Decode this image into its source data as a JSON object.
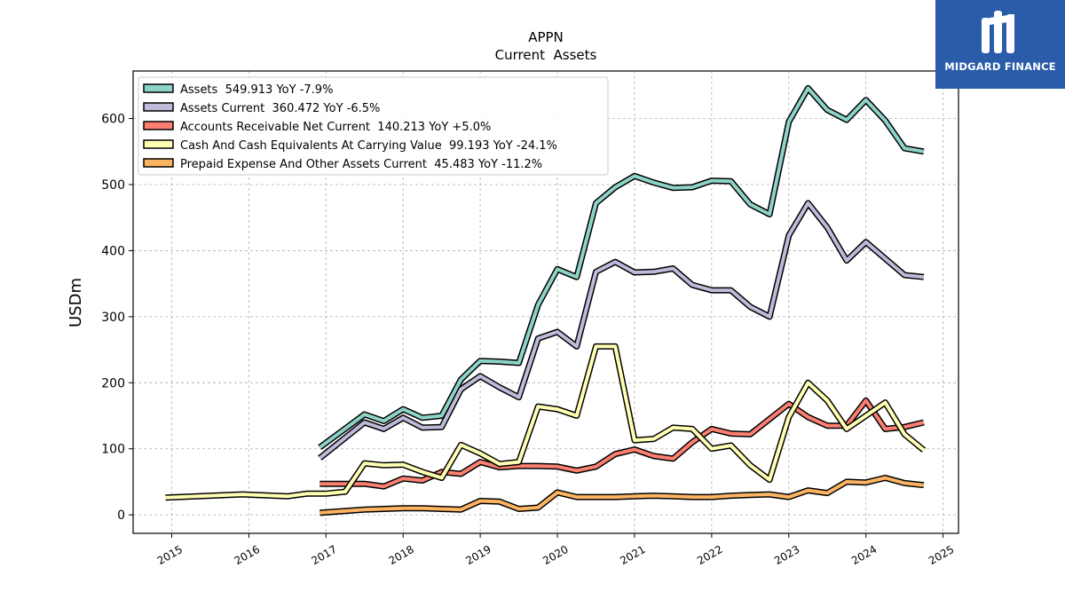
{
  "brand": {
    "name": "MIDGARD FINANCE",
    "bg_color": "#2a5caa"
  },
  "chart_data": {
    "type": "line",
    "title": "APPN",
    "subtitle": "Current  Assets",
    "ylabel": "USDm",
    "xlabel": "",
    "xlim": [
      2014.5,
      2025.2
    ],
    "ylim": [
      -28,
      672
    ],
    "yticks": [
      0,
      100,
      200,
      300,
      400,
      500,
      600
    ],
    "xticks": [
      2015,
      2016,
      2017,
      2018,
      2019,
      2020,
      2021,
      2022,
      2023,
      2024,
      2025
    ],
    "grid": true,
    "legend_position": "top-left",
    "series": [
      {
        "name": "Assets  549.913 YoY -7.9%",
        "color": "#8dd3c7",
        "x": [
          2016.92,
          2017.5,
          2017.75,
          2018.0,
          2018.25,
          2018.5,
          2018.75,
          2019.0,
          2019.25,
          2019.5,
          2019.75,
          2020.0,
          2020.25,
          2020.5,
          2020.75,
          2021.0,
          2021.25,
          2021.5,
          2021.75,
          2022.0,
          2022.25,
          2022.5,
          2022.75,
          2023.0,
          2023.25,
          2023.5,
          2023.75,
          2024.0,
          2024.25,
          2024.5,
          2024.75
        ],
        "values": [
          102,
          152,
          142,
          160,
          147,
          150,
          205,
          233,
          232,
          230,
          318,
          372,
          360,
          472,
          496,
          513,
          503,
          495,
          496,
          506,
          505,
          470,
          455,
          595,
          646,
          613,
          598,
          628,
          597,
          555,
          550
        ]
      },
      {
        "name": "Assets Current  360.472 YoY -6.5%",
        "color": "#bebada",
        "x": [
          2016.92,
          2017.5,
          2017.75,
          2018.0,
          2018.25,
          2018.5,
          2018.75,
          2019.0,
          2019.25,
          2019.5,
          2019.75,
          2020.0,
          2020.25,
          2020.5,
          2020.75,
          2021.0,
          2021.25,
          2021.5,
          2021.75,
          2022.0,
          2022.25,
          2022.5,
          2022.75,
          2023.0,
          2023.25,
          2023.5,
          2023.75,
          2024.0,
          2024.25,
          2024.5,
          2024.75
        ],
        "values": [
          86,
          140,
          130,
          147,
          132,
          133,
          190,
          210,
          193,
          178,
          267,
          277,
          255,
          368,
          383,
          367,
          368,
          373,
          348,
          340,
          340,
          315,
          300,
          423,
          472,
          435,
          385,
          413,
          388,
          363,
          360
        ]
      },
      {
        "name": "Accounts Receivable Net Current  140.213 YoY +5.0%",
        "color": "#fb8072",
        "x": [
          2016.92,
          2017.5,
          2017.75,
          2018.0,
          2018.25,
          2018.5,
          2018.75,
          2019.0,
          2019.25,
          2019.5,
          2019.75,
          2020.0,
          2020.25,
          2020.5,
          2020.75,
          2021.0,
          2021.25,
          2021.5,
          2021.75,
          2022.0,
          2022.25,
          2022.5,
          2022.75,
          2023.0,
          2023.25,
          2023.5,
          2023.75,
          2024.0,
          2024.25,
          2024.5,
          2024.75
        ],
        "values": [
          47,
          47,
          43,
          55,
          52,
          65,
          62,
          80,
          72,
          74,
          74,
          73,
          67,
          73,
          92,
          99,
          89,
          85,
          110,
          130,
          123,
          122,
          145,
          168,
          148,
          135,
          135,
          173,
          130,
          133,
          140
        ]
      },
      {
        "name": "Cash And Cash Equivalents At Carrying Value  99.193 YoY -24.1%",
        "color": "#ffffb3",
        "x": [
          2014.92,
          2015.92,
          2016.5,
          2016.75,
          2017.0,
          2017.25,
          2017.5,
          2017.75,
          2018.0,
          2018.25,
          2018.5,
          2018.75,
          2019.0,
          2019.25,
          2019.5,
          2019.75,
          2020.0,
          2020.25,
          2020.5,
          2020.75,
          2021.0,
          2021.25,
          2021.5,
          2021.75,
          2022.0,
          2022.25,
          2022.5,
          2022.75,
          2023.0,
          2023.25,
          2023.5,
          2023.75,
          2024.0,
          2024.25,
          2024.5,
          2024.75
        ],
        "values": [
          26,
          31,
          28,
          32,
          32,
          35,
          78,
          75,
          76,
          65,
          56,
          106,
          93,
          77,
          80,
          164,
          160,
          150,
          255,
          255,
          113,
          115,
          132,
          130,
          100,
          105,
          75,
          53,
          148,
          200,
          173,
          130,
          150,
          170,
          122,
          98
        ]
      },
      {
        "name": "Prepaid Expense And Other Assets Current  45.483 YoY -11.2%",
        "color": "#fdb462",
        "x": [
          2016.92,
          2017.5,
          2017.75,
          2018.0,
          2018.25,
          2018.5,
          2018.75,
          2019.0,
          2019.25,
          2019.5,
          2019.75,
          2020.0,
          2020.25,
          2020.5,
          2020.75,
          2021.0,
          2021.25,
          2021.5,
          2021.75,
          2022.0,
          2022.25,
          2022.5,
          2022.75,
          2023.0,
          2023.25,
          2023.5,
          2023.75,
          2024.0,
          2024.25,
          2024.5,
          2024.75
        ],
        "values": [
          3,
          8,
          9,
          10,
          10,
          9,
          8,
          21,
          20,
          9,
          11,
          34,
          27,
          27,
          27,
          28,
          29,
          28,
          27,
          27,
          29,
          30,
          31,
          27,
          37,
          33,
          50,
          49,
          56,
          48,
          45
        ]
      }
    ]
  }
}
